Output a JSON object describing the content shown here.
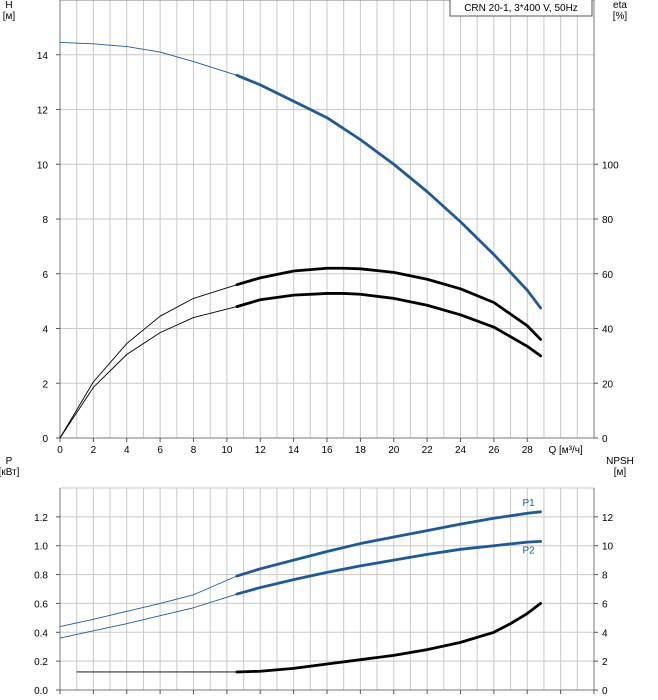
{
  "chart_data": [
    {
      "type": "line",
      "title": "CRN 20-1, 3*400 V, 50Hz",
      "xlabel": "Q [м³/ч]",
      "ylabel": "H\n[м]",
      "y2label": "eta\n[%]",
      "xlim": [
        0,
        32
      ],
      "ylim": [
        0,
        16
      ],
      "y2lim": [
        0,
        160
      ],
      "x_ticks": [
        0,
        2,
        4,
        6,
        8,
        10,
        12,
        14,
        16,
        18,
        20,
        22,
        24,
        26,
        28
      ],
      "y_ticks": [
        0,
        2,
        4,
        6,
        8,
        10,
        12,
        14
      ],
      "y2_ticks": [
        0,
        20,
        40,
        60,
        80,
        100
      ],
      "grid": true,
      "series": [
        {
          "axis": "left",
          "color": "#1f5a96",
          "x": [
            0,
            2,
            4,
            6,
            8,
            10.6,
            12,
            14,
            16,
            18,
            20,
            22,
            24,
            26,
            28,
            28.8
          ],
          "y": [
            14.45,
            14.4,
            14.3,
            14.1,
            13.75,
            13.25,
            12.9,
            12.3,
            11.7,
            10.9,
            10.0,
            9.0,
            7.9,
            6.7,
            5.4,
            4.75
          ],
          "operating_from": 10.6
        },
        {
          "axis": "right",
          "color": "#000000",
          "x": [
            0,
            2,
            4,
            6,
            8,
            10.6,
            12,
            14,
            16,
            17,
            18,
            20,
            22,
            24,
            26,
            28,
            28.8
          ],
          "y": [
            0,
            20.5,
            34.5,
            44.5,
            51,
            56,
            58.5,
            61,
            62,
            62,
            61.8,
            60.5,
            58,
            54.5,
            49.5,
            41,
            36
          ],
          "operating_from": 10.6
        },
        {
          "axis": "right",
          "color": "#000000",
          "x": [
            0,
            2,
            4,
            6,
            8,
            10.6,
            12,
            14,
            16,
            17,
            18,
            20,
            22,
            24,
            26,
            28,
            28.8
          ],
          "y": [
            0,
            18.5,
            30.5,
            38.5,
            44,
            48,
            50.5,
            52.2,
            52.8,
            52.8,
            52.5,
            51,
            48.5,
            45,
            40.5,
            33.5,
            30
          ],
          "operating_from": 10.6
        }
      ]
    },
    {
      "type": "line",
      "xlabel": "",
      "ylabel": "P\n[кВт]",
      "y2label": "NPSH\n[м]",
      "xlim": [
        0,
        32
      ],
      "ylim": [
        0,
        1.4
      ],
      "y2lim": [
        0,
        14
      ],
      "y_ticks": [
        0.0,
        0.2,
        0.4,
        0.6,
        0.8,
        1.0,
        1.2
      ],
      "y_tick_labels": [
        "0.0",
        "0.2",
        "0.4",
        "0.6",
        "0.8",
        "1.0",
        "1.2"
      ],
      "y2_ticks": [
        0,
        2,
        4,
        6,
        8,
        10,
        12
      ],
      "grid": true,
      "series": [
        {
          "name": "P1",
          "axis": "left",
          "color": "#1f5a96",
          "x": [
            0,
            2,
            4,
            6,
            8,
            10.6,
            12,
            14,
            16,
            18,
            20,
            22,
            24,
            26,
            28,
            28.8
          ],
          "y": [
            0.44,
            0.49,
            0.545,
            0.6,
            0.66,
            0.79,
            0.84,
            0.9,
            0.96,
            1.015,
            1.06,
            1.105,
            1.15,
            1.19,
            1.225,
            1.235
          ],
          "operating_from": 10.6
        },
        {
          "name": "P2",
          "axis": "left",
          "color": "#1f5a96",
          "x": [
            0,
            2,
            4,
            6,
            8,
            10.6,
            12,
            14,
            16,
            18,
            20,
            22,
            24,
            26,
            28,
            28.8
          ],
          "y": [
            0.36,
            0.41,
            0.46,
            0.515,
            0.57,
            0.665,
            0.71,
            0.765,
            0.815,
            0.86,
            0.9,
            0.94,
            0.975,
            1.0,
            1.025,
            1.03
          ],
          "operating_from": 10.6
        },
        {
          "axis": "right",
          "color": "#000000",
          "x": [
            1,
            4,
            8,
            10.6,
            12,
            14,
            16,
            18,
            20,
            22,
            24,
            26,
            27,
            28,
            28.8
          ],
          "y": [
            1.25,
            1.25,
            1.25,
            1.25,
            1.3,
            1.5,
            1.8,
            2.1,
            2.4,
            2.8,
            3.3,
            4.0,
            4.6,
            5.3,
            6.0
          ],
          "operating_from": 10.6
        }
      ]
    }
  ]
}
